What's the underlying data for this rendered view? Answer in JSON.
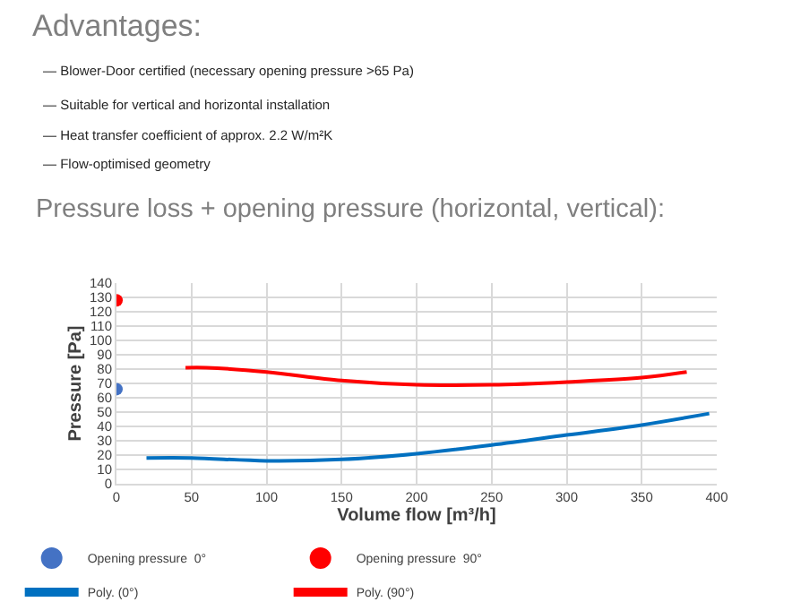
{
  "chart_data": {
    "type": "line",
    "title": "Advantages:",
    "subtitle": "Pressure loss + opening pressure (horizontal, vertical):",
    "annotations": [
      "— Blower-Door certified (necessary opening pressure >65 Pa)",
      "— Suitable for vertical and horizontal installation",
      "— Heat transfer coefficient of approx. 2.2 W/m²K",
      "— Flow-optimised geometry"
    ],
    "xlabel": "Volume flow [m³/h]",
    "ylabel": "Pressure [Pa]",
    "series": [
      {
        "name": "Opening pressure  0°",
        "type": "scatter",
        "color": "#4472c4",
        "x": [
          0
        ],
        "values": [
          66
        ]
      },
      {
        "name": "Opening pressure  90°",
        "type": "scatter",
        "color": "#ff0000",
        "x": [
          0
        ],
        "values": [
          128
        ]
      },
      {
        "name": "Poly. (0°)",
        "color": "#0070c0",
        "x": [
          20,
          50,
          100,
          150,
          200,
          250,
          300,
          350,
          395
        ],
        "values": [
          18,
          18,
          16,
          17,
          21,
          27,
          34,
          41,
          49
        ]
      },
      {
        "name": "Poly. (90°)",
        "color": "#ff0000",
        "x": [
          46,
          60,
          100,
          150,
          200,
          250,
          300,
          350,
          380
        ],
        "values": [
          81,
          81,
          78,
          72,
          69,
          69,
          71,
          74,
          78
        ]
      }
    ],
    "xlim": [
      0,
      400
    ],
    "xticks": [
      0,
      50,
      100,
      150,
      200,
      250,
      300,
      350,
      400
    ],
    "ylim": [
      0,
      140
    ],
    "yticks": [
      0,
      10,
      20,
      30,
      40,
      50,
      60,
      70,
      80,
      90,
      100,
      110,
      120,
      130,
      140
    ],
    "grid": true,
    "legend": "bottom"
  }
}
